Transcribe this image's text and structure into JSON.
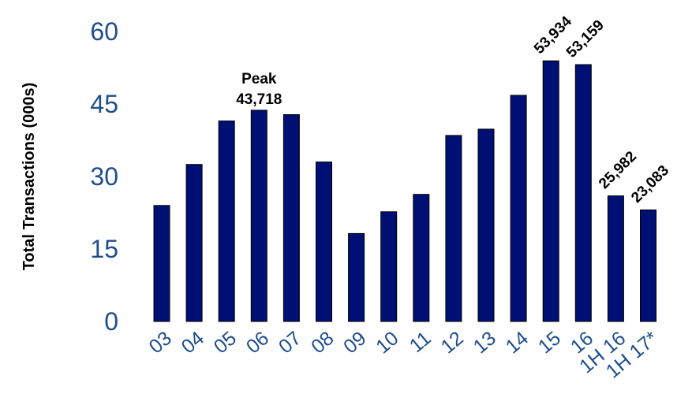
{
  "chart_data": {
    "type": "bar",
    "ylabel": "Total Transactions (000s)",
    "xlabel": "",
    "ylim": [
      0,
      60
    ],
    "yticks": [
      "0",
      "15",
      "30",
      "45",
      "60"
    ],
    "categories": [
      "03",
      "04",
      "05",
      "06",
      "07",
      "08",
      "09",
      "10",
      "11",
      "12",
      "13",
      "14",
      "15",
      "16",
      "1H 16",
      "1H 17*"
    ],
    "values": [
      24,
      32.5,
      41.5,
      43.718,
      42.8,
      33,
      18.2,
      22.7,
      26.3,
      38.5,
      39.8,
      46.8,
      53.934,
      53.159,
      25.982,
      23.083
    ],
    "data_labels": [
      {
        "index": 3,
        "lines": [
          "Peak",
          "43,718"
        ],
        "rotated": false
      },
      {
        "index": 12,
        "lines": [
          "53,934"
        ],
        "rotated": true
      },
      {
        "index": 13,
        "lines": [
          "53,159"
        ],
        "rotated": true
      },
      {
        "index": 14,
        "lines": [
          "25,982"
        ],
        "rotated": true
      },
      {
        "index": 15,
        "lines": [
          "23,083"
        ],
        "rotated": true
      }
    ],
    "grid": false,
    "legend": "none",
    "colors": {
      "bar": "#000F73",
      "tick_text": "#1F4E8C",
      "label_text": "#000000"
    }
  }
}
